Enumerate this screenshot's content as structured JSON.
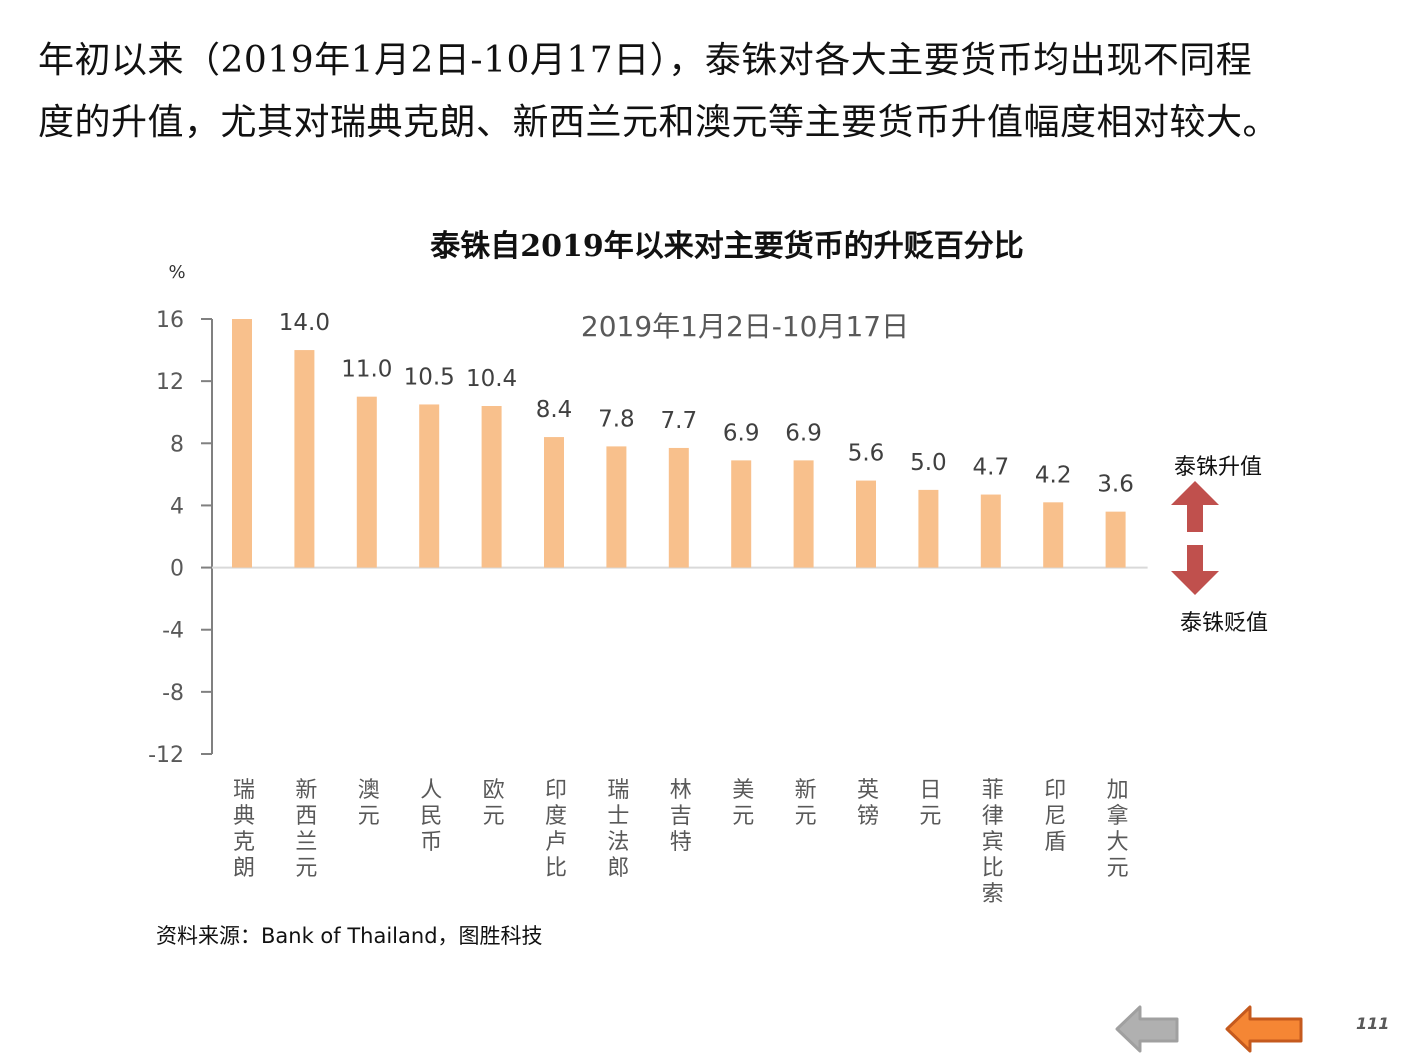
{
  "intro": {
    "line1": "年初以来（2019年1月2日-10月17日），泰铢对各大主要货币均出现不同程",
    "line2": "度的升值，尤其对瑞典克朗、新西兰元和澳元等主要货币升值幅度相对较大。"
  },
  "chart_data": {
    "type": "bar",
    "title": "泰铢自2019年以来对主要货币的升贬百分比",
    "subtitle": "2019年1月2日-10月17日",
    "ylabel": "%",
    "xlabel": "",
    "ylim": [
      -12,
      16
    ],
    "yticks": [
      16,
      12,
      8,
      4,
      0,
      -4,
      -8,
      -12
    ],
    "tick_labels": [
      "16",
      "12",
      "8",
      "4",
      "0",
      "-4",
      "-8",
      "-12"
    ],
    "grid": false,
    "bar_color": "#F8C08C",
    "categories": [
      "瑞典克朗",
      "新西兰元",
      "澳元",
      "人民币",
      "欧元",
      "印度卢比",
      "瑞士法郎",
      "林吉特",
      "美元",
      "新元",
      "英镑",
      "日元",
      "菲律宾比索",
      "印尼盾",
      "加拿大元"
    ],
    "values": [
      16.0,
      14.0,
      11.0,
      10.5,
      10.4,
      8.4,
      7.8,
      7.7,
      6.9,
      6.9,
      5.6,
      5.0,
      4.7,
      4.2,
      3.6
    ],
    "data_labels": [
      "",
      "14.0",
      "11.0",
      "10.5",
      "10.4",
      "8.4",
      "7.8",
      "7.7",
      "6.9",
      "6.9",
      "5.6",
      "5.0",
      "4.7",
      "4.2",
      "3.6"
    ],
    "legend": {
      "placement": "right",
      "up_label": "泰铢升值",
      "down_label": "泰铢贬值",
      "arrow_color": "#C0504D"
    }
  },
  "source": "资料来源：Bank of Thailand，图胜科技",
  "nav": {
    "back_gray_color": "#B0B0B0",
    "back_orange_color": "#F58634",
    "page_number": "111"
  }
}
